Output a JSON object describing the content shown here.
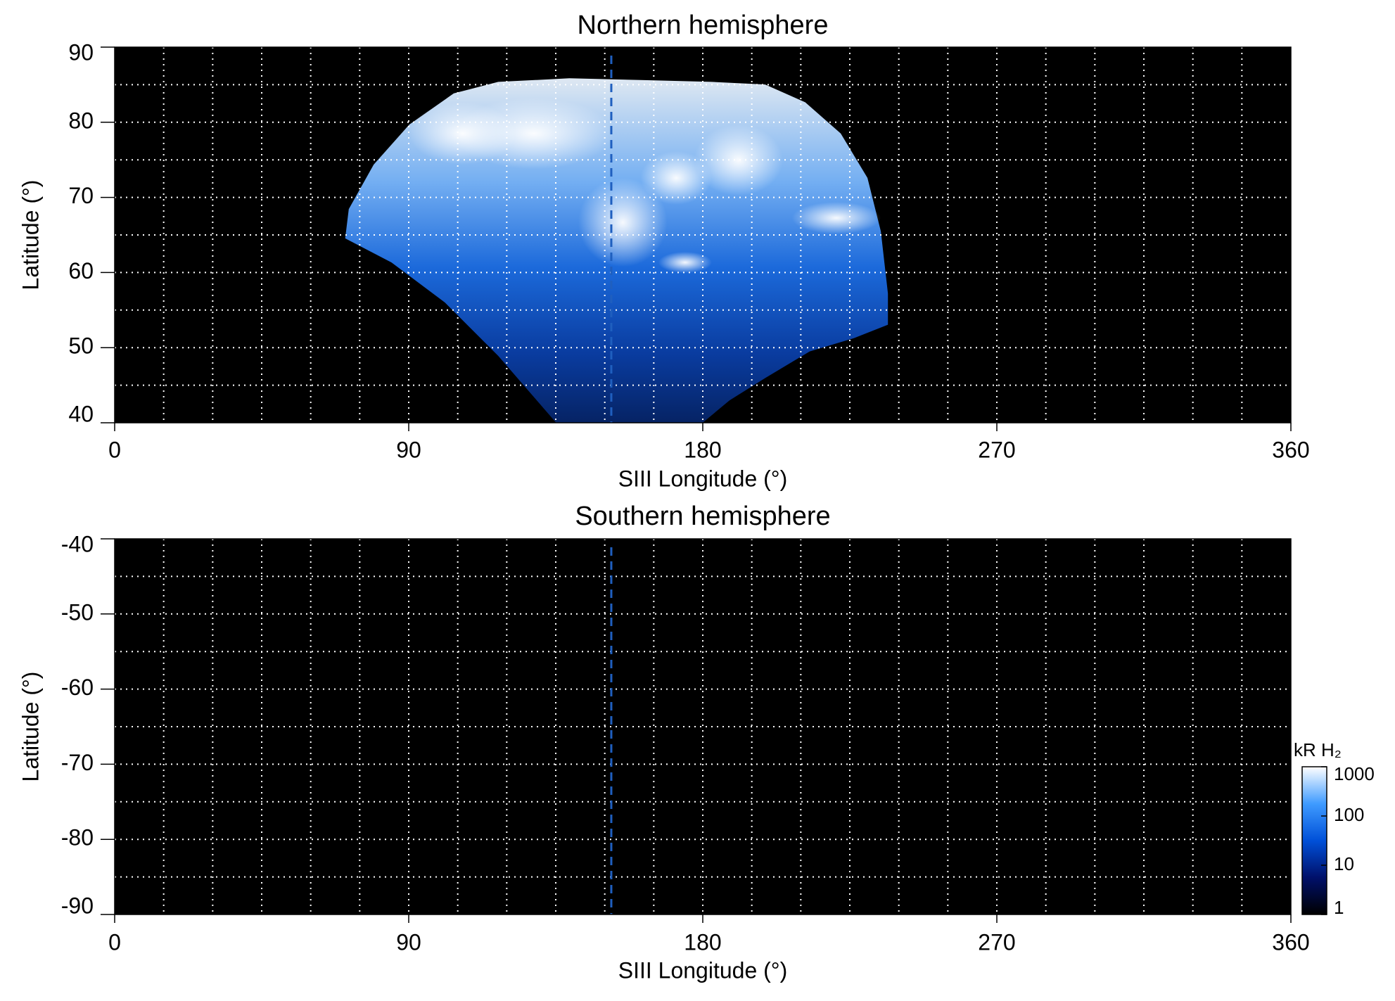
{
  "chart_data": [
    {
      "type": "heatmap",
      "title": "Northern hemisphere",
      "xlabel": "SIII Longitude (°)",
      "ylabel": "Latitude (°)",
      "xlim": [
        0,
        360
      ],
      "xticks": [
        0,
        90,
        180,
        270,
        360
      ],
      "ylim": [
        40,
        90
      ],
      "yticks": [
        40,
        50,
        60,
        70,
        80,
        90
      ],
      "xgrid": [
        15,
        30,
        45,
        60,
        75,
        90,
        105,
        120,
        135,
        150,
        165,
        180,
        195,
        210,
        225,
        240,
        255,
        270,
        285,
        300,
        315,
        330,
        345
      ],
      "ygrid": [
        45,
        50,
        55,
        60,
        65,
        70,
        75,
        80,
        85
      ],
      "vline": {
        "x": 152,
        "color": "#1f5fbf"
      }
    },
    {
      "type": "heatmap",
      "title": "Southern hemisphere",
      "xlabel": "SIII Longitude (°)",
      "ylabel": "Latitude (°)",
      "xlim": [
        0,
        360
      ],
      "xticks": [
        0,
        90,
        180,
        270,
        360
      ],
      "ylim": [
        -90,
        -40
      ],
      "yticks": [
        -90,
        -80,
        -70,
        -60,
        -50,
        -40
      ],
      "xgrid": [
        15,
        30,
        45,
        60,
        75,
        90,
        105,
        120,
        135,
        150,
        165,
        180,
        195,
        210,
        225,
        240,
        255,
        270,
        285,
        300,
        315,
        330,
        345
      ],
      "ygrid": [
        -85,
        -80,
        -75,
        -70,
        -65,
        -60,
        -55,
        -50,
        -45
      ],
      "vline": {
        "x": 152,
        "color": "#1f5fbf"
      },
      "colorbar": {
        "label": "kR H₂",
        "log": true,
        "range": [
          1,
          1000
        ],
        "ticks": [
          1,
          10,
          100,
          1000
        ],
        "colors": [
          "#000000",
          "#00106a",
          "#0050d8",
          "#3f9bff",
          "#ffffff"
        ]
      }
    }
  ]
}
